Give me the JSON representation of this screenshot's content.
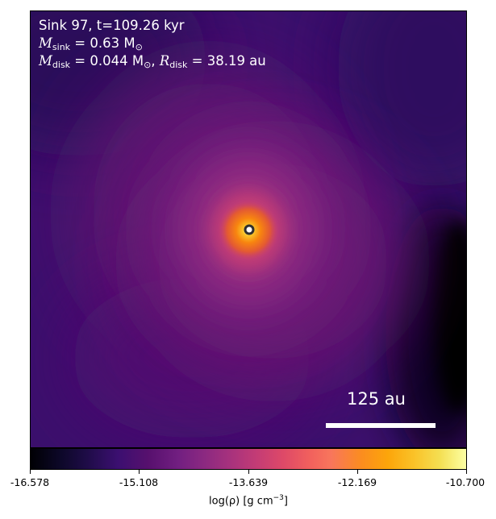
{
  "annotation": {
    "line1": "Sink 97, t=109.26 kyr",
    "msink_symbol": "M",
    "msink_sub": "sink",
    "msink_value": " = 0.63 M",
    "msink_unit_sub": "⊙",
    "mdisk_symbol": "M",
    "mdisk_sub": "disk",
    "mdisk_value": " = 0.044 M",
    "mdisk_unit_sub": "⊙",
    "separator": ", ",
    "rdisk_symbol": "R",
    "rdisk_sub": "disk",
    "rdisk_value": " = 38.19 au"
  },
  "scalebar": {
    "label": "125 au"
  },
  "colorbar": {
    "colormap": "inferno",
    "ticks": [
      "-16.578",
      "-15.108",
      "-13.639",
      "-12.169",
      "-10.700"
    ],
    "label_prefix": "log(ρ) [g cm",
    "label_exp": "−3",
    "label_suffix": "]"
  },
  "sink_marker": {
    "icon": "sink-circle-icon",
    "color": "#2f2f2f"
  }
}
